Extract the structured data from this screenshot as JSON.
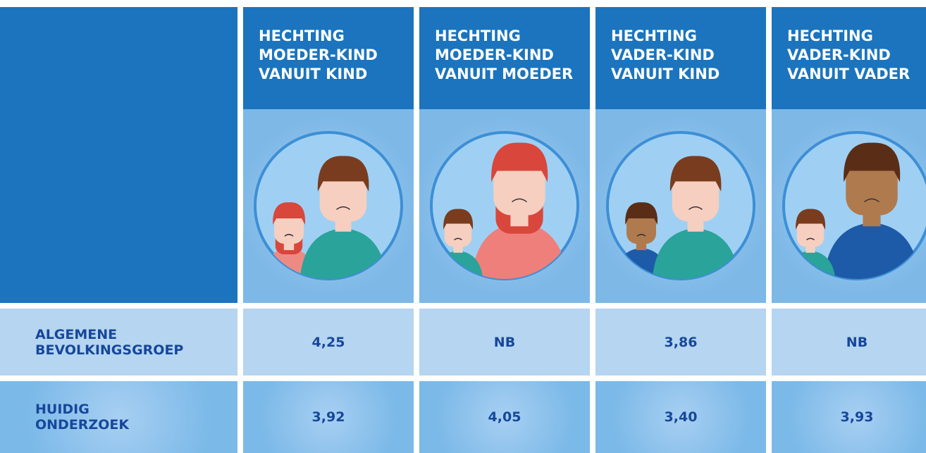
{
  "table": {
    "headers": [
      [
        "HECHTING",
        "MOEDER-KIND",
        "VANUIT KIND"
      ],
      [
        "HECHTING",
        "MOEDER-KIND",
        "VANUIT MOEDER"
      ],
      [
        "HECHTING",
        "VADER-KIND",
        "VANUIT KIND"
      ],
      [
        "HECHTING",
        "VADER-KIND",
        "VANUIT VADER"
      ]
    ],
    "rows": [
      {
        "label": [
          "ALGEMENE",
          "BEVOLKINGSGROEP"
        ],
        "values": [
          "4,25",
          "NB",
          "3,86",
          "NB"
        ]
      },
      {
        "label": [
          "HUIDIG",
          "ONDERZOEK"
        ],
        "values": [
          "3,92",
          "4,05",
          "3,40",
          "3,93"
        ]
      }
    ]
  }
}
